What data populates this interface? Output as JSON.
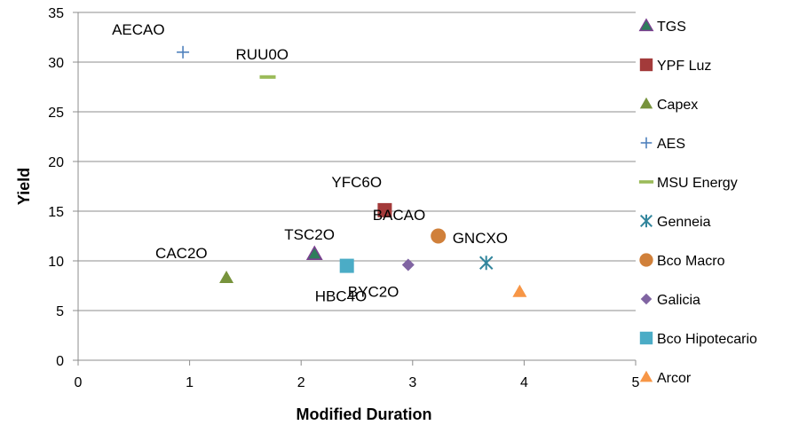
{
  "chart_data": {
    "type": "scatter",
    "title": "",
    "xlabel": "Modified Duration",
    "ylabel": "Yield",
    "xlim": [
      0,
      5
    ],
    "ylim": [
      0,
      35
    ],
    "x_ticks": [
      "0",
      "1",
      "2",
      "3",
      "4",
      "5"
    ],
    "y_ticks": [
      "0",
      "5",
      "10",
      "15",
      "20",
      "25",
      "30",
      "35"
    ],
    "grid": "horizontal",
    "legend_position": "right",
    "series": [
      {
        "name": "TGS",
        "marker": "triangle-teal",
        "color": "#4a7a8c",
        "x": 2.12,
        "y": 10.7,
        "label": "TSC2O"
      },
      {
        "name": "YPF Luz",
        "marker": "square",
        "color": "#a33a3a",
        "x": 2.75,
        "y": 15.1,
        "label": "YFC6O"
      },
      {
        "name": "Capex",
        "marker": "triangle",
        "color": "#77933c",
        "x": 1.33,
        "y": 8.3,
        "label": "CAC2O"
      },
      {
        "name": "AES",
        "marker": "plus",
        "color": "#4f81bd",
        "x": 0.94,
        "y": 31.0,
        "label": "AECAO"
      },
      {
        "name": "MSU Energy",
        "marker": "dash",
        "color": "#9bbb59",
        "x": 1.7,
        "y": 28.5,
        "label": "RUU0O"
      },
      {
        "name": "Genneia",
        "marker": "star",
        "color": "#31859c",
        "x": 3.66,
        "y": 9.8,
        "label": "GNCXO"
      },
      {
        "name": "Bco Macro",
        "marker": "circle",
        "color": "#d0803a",
        "x": 3.23,
        "y": 12.5,
        "label": "BACAO"
      },
      {
        "name": "Galicia",
        "marker": "diamond",
        "color": "#8064a2",
        "x": 2.96,
        "y": 9.6,
        "label": "BYC2O"
      },
      {
        "name": "Bco Hipotecario",
        "marker": "square",
        "color": "#4bacc6",
        "x": 2.41,
        "y": 9.5,
        "label": "HBC4O"
      },
      {
        "name": "Arcor",
        "marker": "triangle",
        "color": "#f79646",
        "x": 3.96,
        "y": 6.9,
        "label": ""
      }
    ]
  }
}
